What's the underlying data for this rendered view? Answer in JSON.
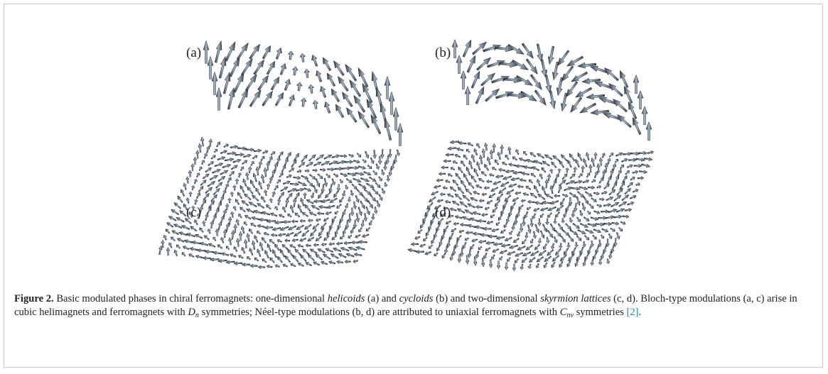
{
  "figure": {
    "panels": [
      "(a)",
      "(b)",
      "(c)",
      "(d)"
    ],
    "caption": [
      {
        "text": "Figure 2.",
        "style": "bold"
      },
      {
        "text": " Basic modulated phases in chiral ferromagnets: one-dimensional ",
        "style": "normal"
      },
      {
        "text": "helicoids",
        "style": "italic"
      },
      {
        "text": " (a) and ",
        "style": "normal"
      },
      {
        "text": "cycloids",
        "style": "italic"
      },
      {
        "text": " (b) and two-dimensional ",
        "style": "normal"
      },
      {
        "text": "skyrmion lattices",
        "style": "italic"
      },
      {
        "text": " (c, d). Bloch-type modulations (a, c) arise in cubic helimagnets and ferromagnets with ",
        "style": "normal"
      },
      {
        "text": "D",
        "style": "italic"
      },
      {
        "text": "n",
        "style": "sub"
      },
      {
        "text": " symmetries; Néel-type modulations (b, d) are attributed to uniaxial ferromagnets with ",
        "style": "normal"
      },
      {
        "text": "C",
        "style": "italic"
      },
      {
        "text": "nv",
        "style": "sub"
      },
      {
        "text": " symmetries ",
        "style": "normal"
      },
      {
        "text": "[2]",
        "style": "ref"
      },
      {
        "text": ".",
        "style": "normal"
      }
    ]
  }
}
